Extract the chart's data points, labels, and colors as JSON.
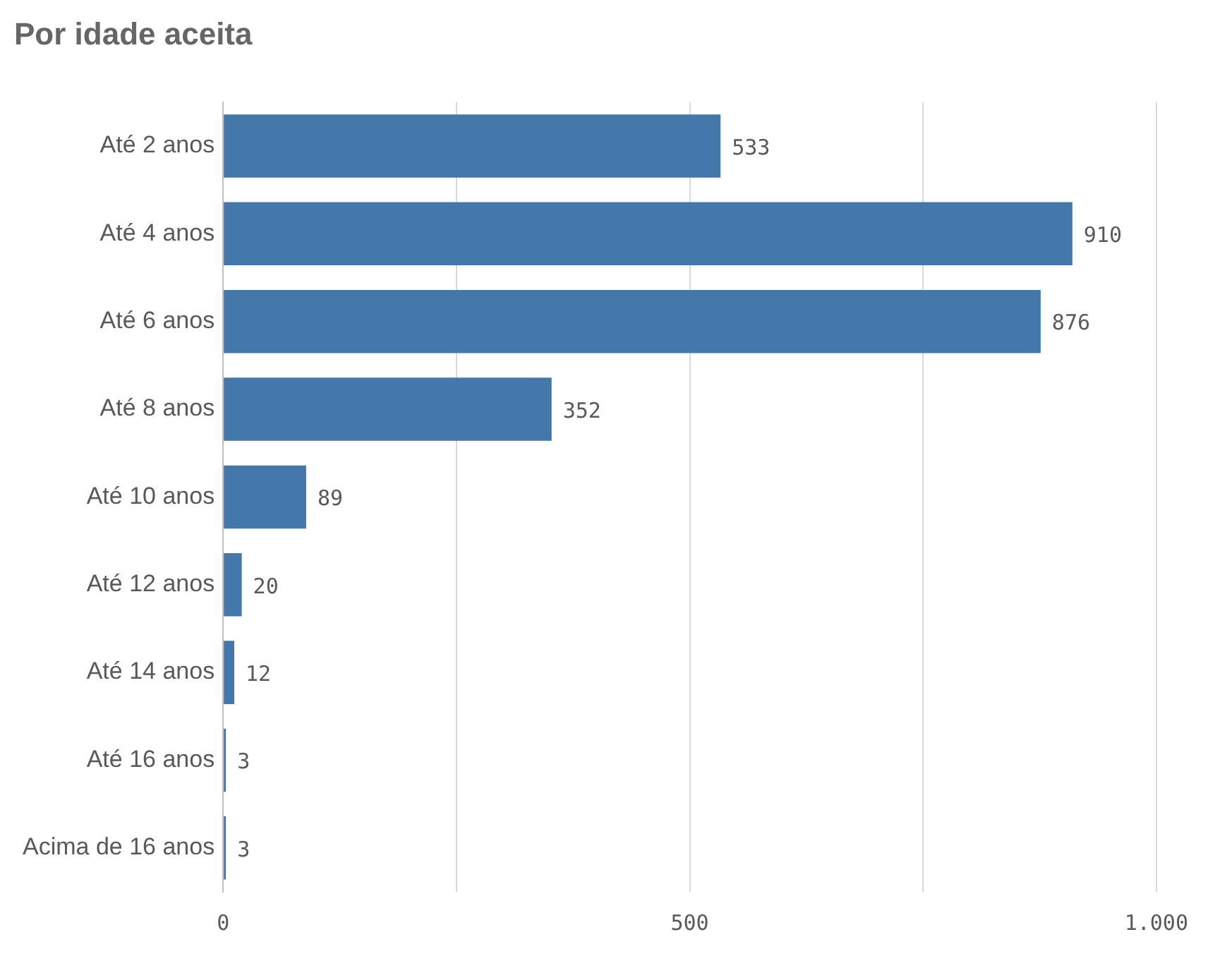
{
  "chart_data": {
    "type": "bar",
    "title": "Por idade aceita",
    "orientation": "horizontal",
    "categories": [
      "Até 2 anos",
      "Até 4 anos",
      "Até 6 anos",
      "Até 8 anos",
      "Até 10 anos",
      "Até 12 anos",
      "Até 14 anos",
      "Até 16 anos",
      "Acima de 16 anos"
    ],
    "values": [
      533,
      910,
      876,
      352,
      89,
      20,
      12,
      3,
      3
    ],
    "color": "#4477aa",
    "xlim": [
      0,
      1000
    ],
    "xticks": [
      0,
      {
        "value": 250,
        "label": null
      },
      500,
      {
        "value": 750,
        "label": null
      },
      {
        "value": 1000,
        "label": "1.000"
      }
    ],
    "grid": "x",
    "data_labels": true,
    "legend": false
  }
}
